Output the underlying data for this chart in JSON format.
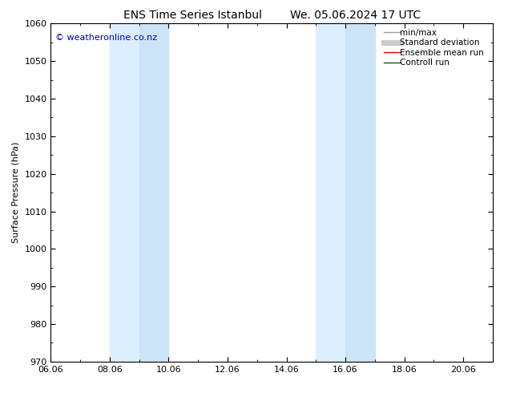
{
  "title_left": "ENS Time Series Istanbul",
  "title_right": "We. 05.06.2024 17 UTC",
  "ylabel": "Surface Pressure (hPa)",
  "ylim": [
    970,
    1060
  ],
  "yticks": [
    970,
    980,
    990,
    1000,
    1010,
    1020,
    1030,
    1040,
    1050,
    1060
  ],
  "xlim_start": 0.0,
  "xlim_end": 15.0,
  "xtick_labels": [
    "06.06",
    "08.06",
    "10.06",
    "12.06",
    "14.06",
    "16.06",
    "18.06",
    "20.06"
  ],
  "xtick_positions": [
    0,
    2,
    4,
    6,
    8,
    10,
    12,
    14
  ],
  "shaded_bands": [
    {
      "x_start": 2.0,
      "x_end": 3.0
    },
    {
      "x_start": 3.0,
      "x_end": 4.0
    },
    {
      "x_start": 9.0,
      "x_end": 10.0
    },
    {
      "x_start": 10.0,
      "x_end": 11.0
    }
  ],
  "shade_color": "#ddeeff",
  "shade_color2": "#cce4f5",
  "background_color": "#ffffff",
  "copyright_text": "© weatheronline.co.nz",
  "legend_entries": [
    {
      "label": "min/max",
      "color": "#999999",
      "lw": 1.0,
      "type": "line"
    },
    {
      "label": "Standard deviation",
      "color": "#cccccc",
      "lw": 5,
      "type": "line"
    },
    {
      "label": "Ensemble mean run",
      "color": "#dd0000",
      "lw": 1.0,
      "type": "line"
    },
    {
      "label": "Controll run",
      "color": "#006600",
      "lw": 1.0,
      "type": "line"
    }
  ],
  "title_fontsize": 10,
  "axis_fontsize": 8,
  "tick_fontsize": 8,
  "copyright_fontsize": 8,
  "border_color": "#000000",
  "tick_color": "#000000"
}
